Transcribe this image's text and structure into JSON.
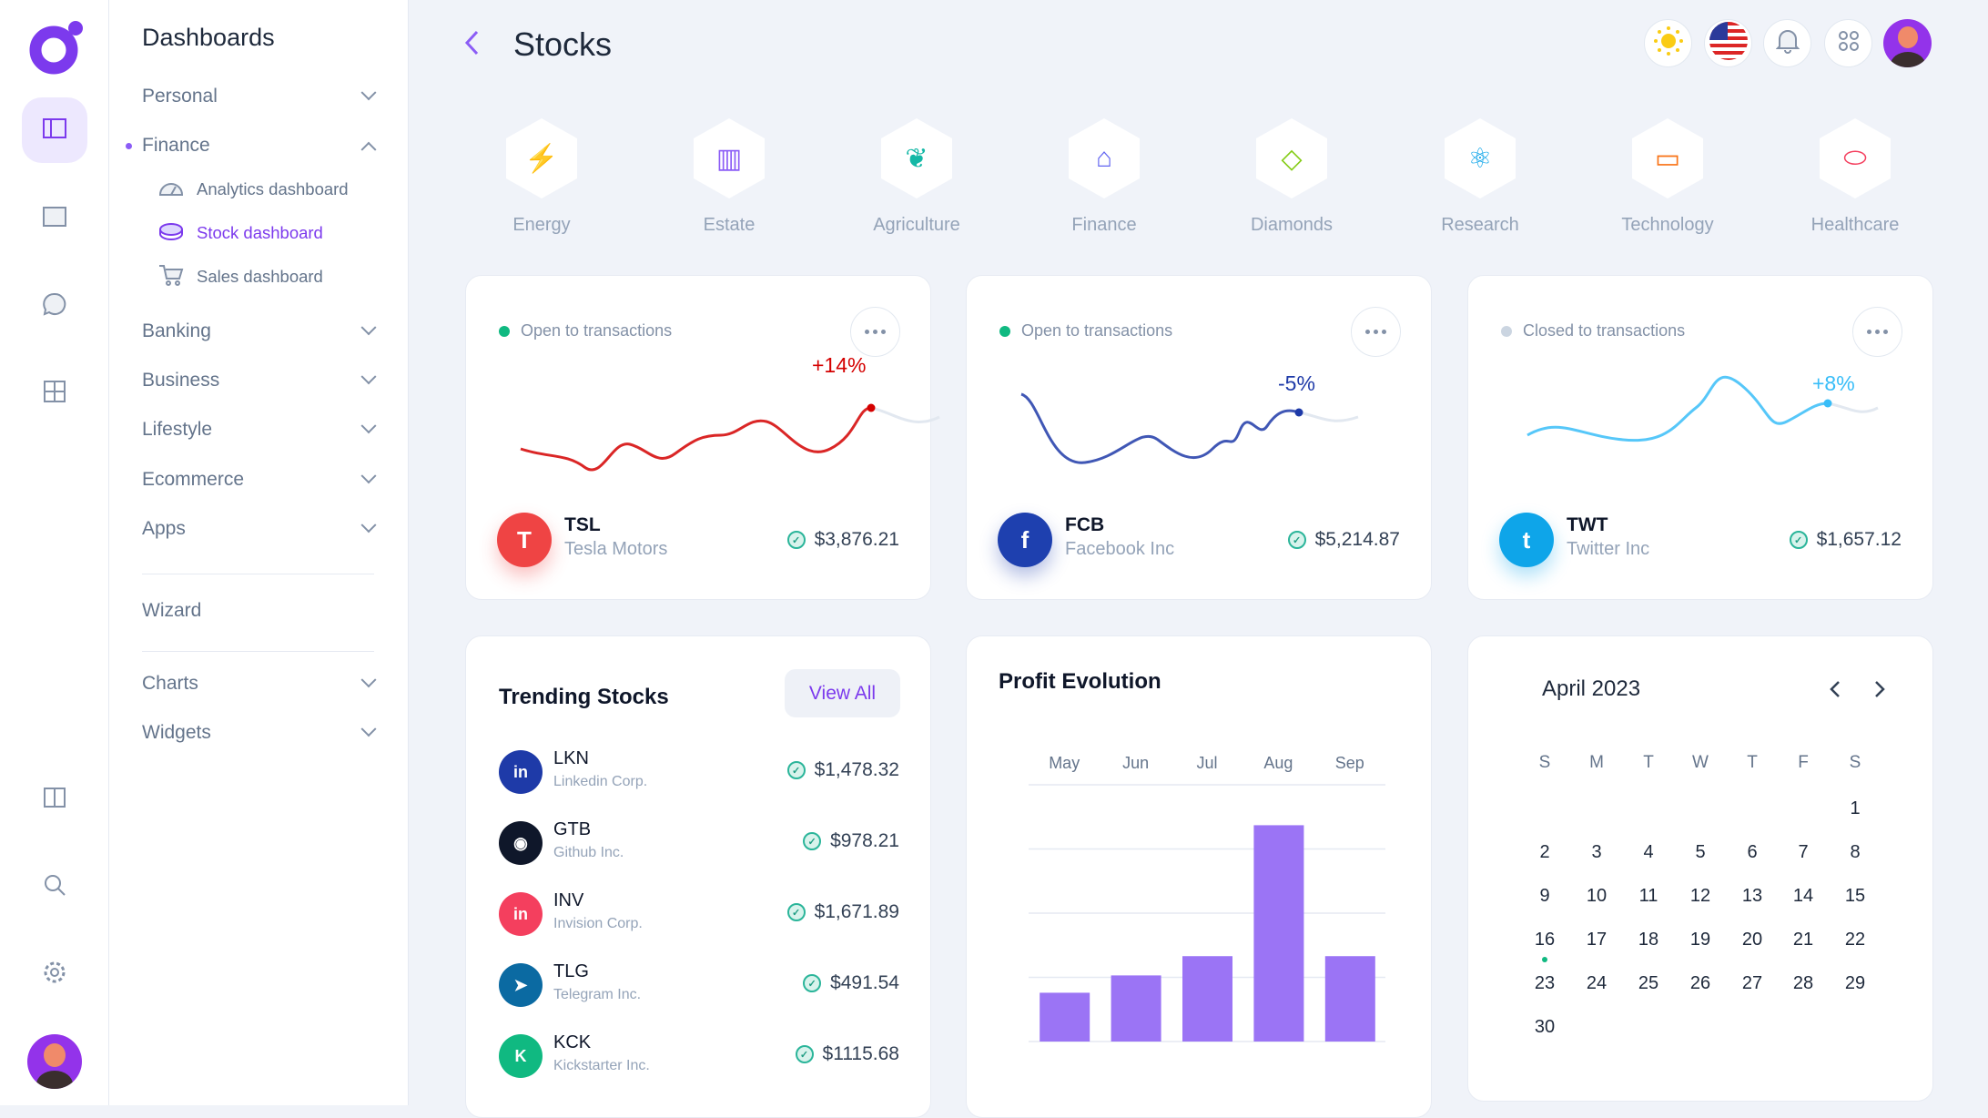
{
  "sidebar": {
    "title": "Dashboards",
    "items": [
      {
        "label": "Personal"
      },
      {
        "label": "Finance"
      },
      {
        "label": "Banking"
      },
      {
        "label": "Business"
      },
      {
        "label": "Lifestyle"
      },
      {
        "label": "Ecommerce"
      },
      {
        "label": "Apps"
      },
      {
        "label": "Wizard"
      },
      {
        "label": "Charts"
      },
      {
        "label": "Widgets"
      }
    ],
    "finance_sub": [
      {
        "label": "Analytics dashboard",
        "icon": "gauge-icon"
      },
      {
        "label": "Stock dashboard",
        "icon": "coins-icon",
        "active": true
      },
      {
        "label": "Sales dashboard",
        "icon": "cart-icon"
      }
    ]
  },
  "header": {
    "title": "Stocks"
  },
  "categories": [
    {
      "label": "Energy",
      "icon": "bolt-icon",
      "color": "#facc15"
    },
    {
      "label": "Estate",
      "icon": "building-icon",
      "color": "#8b5cf6"
    },
    {
      "label": "Agriculture",
      "icon": "leaf-icon",
      "color": "#14b8a6"
    },
    {
      "label": "Finance",
      "icon": "bank-icon",
      "color": "#6366f1"
    },
    {
      "label": "Diamonds",
      "icon": "diamond-icon",
      "color": "#84cc16"
    },
    {
      "label": "Research",
      "icon": "atom-icon",
      "color": "#0ea5e9"
    },
    {
      "label": "Technology",
      "icon": "monitor-icon",
      "color": "#f97316"
    },
    {
      "label": "Healthcare",
      "icon": "pill-icon",
      "color": "#f43f5e"
    }
  ],
  "stock_cards": [
    {
      "status": "Open to transactions",
      "status_color": "#10b981",
      "change": "+14%",
      "color": "#d40000",
      "ticker": "TSL",
      "name": "Tesla Motors",
      "price": "$3,876.21",
      "logo_color": "#ef4444",
      "logo": "T"
    },
    {
      "status": "Open to transactions",
      "status_color": "#10b981",
      "change": "-5%",
      "color": "#1e3aa8",
      "ticker": "FCB",
      "name": "Facebook Inc",
      "price": "$5,214.87",
      "logo_color": "#1e40af",
      "logo": "f"
    },
    {
      "status": "Closed to transactions",
      "status_color": "#cbd5e1",
      "change": "+8%",
      "color": "#38bdf8",
      "ticker": "TWT",
      "name": "Twitter Inc",
      "price": "$1,657.12",
      "logo_color": "#0ea5e9",
      "logo": "t"
    }
  ],
  "trending": {
    "title": "Trending Stocks",
    "view_all": "View All",
    "items": [
      {
        "ticker": "LKN",
        "name": "Linkedin Corp.",
        "price": "$1,478.32",
        "color": "#1e3aa8",
        "logo": "in"
      },
      {
        "ticker": "GTB",
        "name": "Github Inc.",
        "price": "$978.21",
        "color": "#0f172a",
        "logo": "◉"
      },
      {
        "ticker": "INV",
        "name": "Invision Corp.",
        "price": "$1,671.89",
        "color": "#f43f5e",
        "logo": "in"
      },
      {
        "ticker": "TLG",
        "name": "Telegram Inc.",
        "price": "$491.54",
        "color": "#0b6aa2",
        "logo": "➤"
      },
      {
        "ticker": "KCK",
        "name": "Kickstarter Inc.",
        "price": "$1115.68",
        "color": "#10b981",
        "logo": "K"
      }
    ]
  },
  "chart_data": {
    "type": "bar",
    "title": "Profit Evolution",
    "categories": [
      "May",
      "Jun",
      "Jul",
      "Aug",
      "Sep"
    ],
    "values": [
      0.76,
      1.03,
      1.33,
      3.37,
      1.33
    ],
    "ylim": [
      0,
      4
    ],
    "grid": true,
    "color": "#9b74f5"
  },
  "calendar": {
    "month": "April 2023",
    "weekdays": [
      "S",
      "M",
      "T",
      "W",
      "T",
      "F",
      "S"
    ],
    "first_weekday": 6,
    "days": 30,
    "marked_day": 16
  }
}
